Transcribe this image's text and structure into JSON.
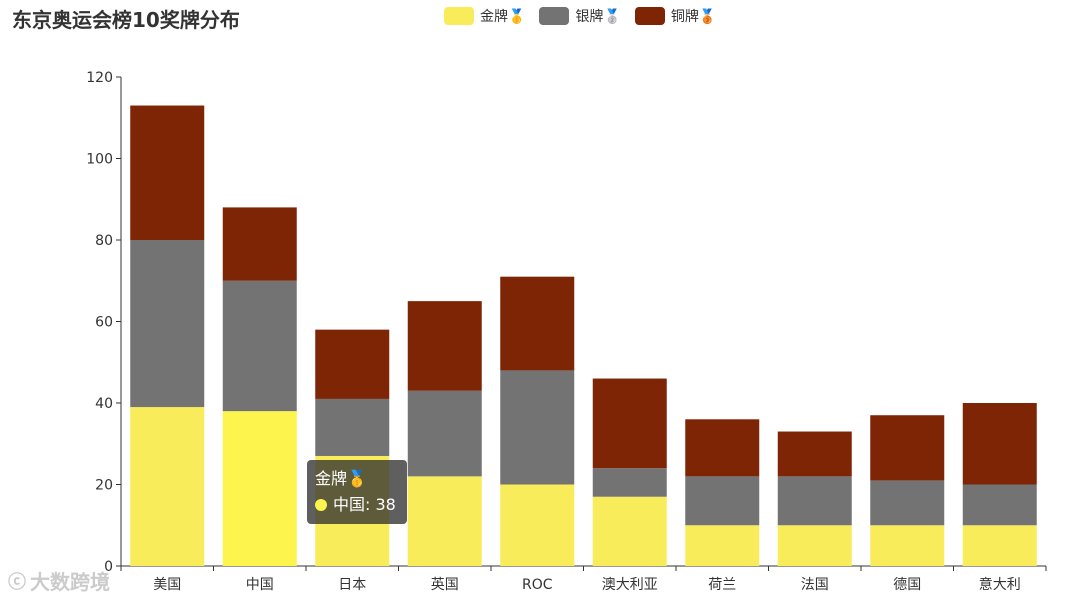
{
  "title": "东京奥运会榜10奖牌分布",
  "legend": [
    {
      "name": "金牌",
      "emoji": "🥇",
      "color": "#f9ec5b"
    },
    {
      "name": "银牌",
      "emoji": "🥈",
      "color": "#737373"
    },
    {
      "name": "铜牌",
      "emoji": "🥉",
      "color": "#7e2506"
    }
  ],
  "tooltip": {
    "title": "金牌🥇",
    "text": "中国: 38",
    "color": "#fdf44e"
  },
  "watermark": {
    "icon": "ⓒ",
    "text": "大数跨境"
  },
  "chart_data": {
    "type": "bar",
    "stacked": true,
    "categories": [
      "美国",
      "中国",
      "日本",
      "英国",
      "ROC",
      "澳大利亚",
      "荷兰",
      "法国",
      "德国",
      "意大利"
    ],
    "series": [
      {
        "name": "金牌🥇",
        "color": "#f9ec5b",
        "values": [
          39,
          38,
          27,
          22,
          20,
          17,
          10,
          10,
          10,
          10
        ]
      },
      {
        "name": "银牌🥈",
        "color": "#737373",
        "values": [
          41,
          32,
          14,
          21,
          28,
          7,
          12,
          12,
          11,
          10
        ]
      },
      {
        "name": "铜牌🥉",
        "color": "#7e2506",
        "values": [
          33,
          18,
          17,
          22,
          23,
          22,
          14,
          11,
          16,
          20
        ]
      }
    ],
    "highlight": {
      "series": 0,
      "category": 1,
      "color": "#fdf44e"
    },
    "ylim": [
      0,
      120
    ],
    "yticks": [
      0,
      20,
      40,
      60,
      80,
      100,
      120
    ],
    "grid": false,
    "legend_position": "top-center"
  }
}
